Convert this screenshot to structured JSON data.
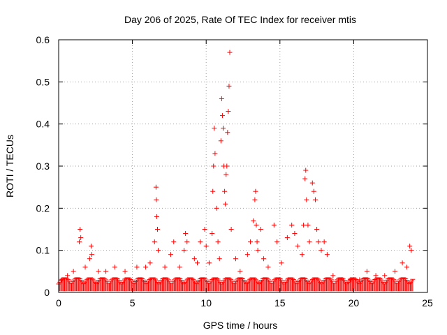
{
  "chart_data": {
    "type": "scatter",
    "title": "Day 206 of 2025, Rate Of TEC Index for receiver mtis",
    "xlabel": "GPS time / hours",
    "ylabel": "ROTI / TECUs",
    "xlim": [
      0,
      25
    ],
    "ylim": [
      0,
      0.6
    ],
    "xticks": [
      0,
      5,
      10,
      15,
      20,
      25
    ],
    "xtick_labels": [
      "0",
      "5",
      "10",
      "15",
      "20",
      "25"
    ],
    "yticks": [
      0,
      0.1,
      0.2,
      0.3,
      0.4,
      0.5,
      0.6
    ],
    "ytick_labels": [
      "0",
      "0.1",
      "0.2",
      "0.3",
      "0.4",
      "0.5",
      "0.6"
    ],
    "grid": true,
    "marker": "+",
    "series_color": "#ff0000",
    "series": [
      {
        "name": "ROTI",
        "x": [
          0.2,
          0.6,
          1.0,
          1.4,
          1.45,
          1.5,
          1.8,
          2.1,
          2.2,
          2.25,
          2.7,
          3.2,
          3.8,
          4.5,
          5.3,
          5.9,
          6.2,
          6.5,
          6.6,
          6.62,
          6.65,
          6.7,
          6.75,
          7.2,
          7.6,
          7.8,
          8.2,
          8.5,
          8.6,
          8.7,
          9.2,
          9.4,
          9.6,
          9.9,
          10.0,
          10.2,
          10.4,
          10.45,
          10.5,
          10.55,
          10.6,
          10.7,
          10.8,
          10.9,
          11.0,
          11.05,
          11.1,
          11.15,
          11.2,
          11.25,
          11.3,
          11.35,
          11.4,
          11.45,
          11.5,
          11.55,
          11.6,
          11.7,
          12.0,
          12.3,
          12.8,
          13.0,
          13.2,
          13.3,
          13.35,
          13.4,
          13.45,
          13.5,
          13.7,
          13.9,
          14.2,
          14.6,
          14.8,
          15.1,
          15.5,
          15.8,
          16.0,
          16.2,
          16.5,
          16.6,
          16.7,
          16.75,
          16.8,
          16.9,
          17.0,
          17.2,
          17.3,
          17.4,
          17.5,
          17.6,
          17.8,
          18.0,
          18.2,
          18.6,
          19.2,
          19.8,
          20.4,
          20.9,
          21.5,
          22.1,
          22.8,
          23.3,
          23.6,
          23.8,
          23.9
        ],
        "y": [
          0.03,
          0.04,
          0.05,
          0.12,
          0.15,
          0.13,
          0.06,
          0.08,
          0.11,
          0.09,
          0.05,
          0.05,
          0.06,
          0.05,
          0.06,
          0.06,
          0.07,
          0.12,
          0.25,
          0.22,
          0.18,
          0.15,
          0.1,
          0.06,
          0.09,
          0.12,
          0.06,
          0.1,
          0.14,
          0.12,
          0.08,
          0.07,
          0.12,
          0.15,
          0.11,
          0.07,
          0.14,
          0.24,
          0.3,
          0.39,
          0.33,
          0.2,
          0.12,
          0.08,
          0.36,
          0.46,
          0.42,
          0.39,
          0.3,
          0.24,
          0.21,
          0.28,
          0.3,
          0.38,
          0.43,
          0.49,
          0.57,
          0.15,
          0.08,
          0.05,
          0.09,
          0.12,
          0.17,
          0.22,
          0.24,
          0.16,
          0.12,
          0.1,
          0.15,
          0.08,
          0.06,
          0.16,
          0.12,
          0.07,
          0.13,
          0.16,
          0.14,
          0.11,
          0.09,
          0.16,
          0.27,
          0.29,
          0.22,
          0.16,
          0.12,
          0.26,
          0.24,
          0.22,
          0.15,
          0.12,
          0.1,
          0.12,
          0.09,
          0.04,
          0.03,
          0.03,
          0.03,
          0.05,
          0.04,
          0.04,
          0.05,
          0.07,
          0.06,
          0.11,
          0.1
        ]
      }
    ]
  }
}
